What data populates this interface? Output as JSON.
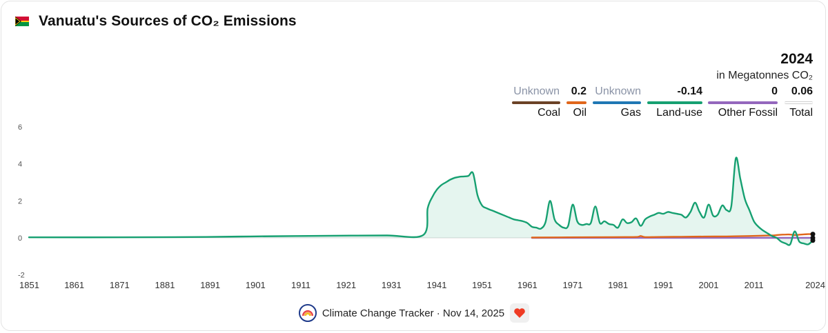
{
  "header": {
    "title": "Vanuatu's Sources of CO₂ Emissions"
  },
  "legend": {
    "year": "2024",
    "unit": "in Megatonnes CO₂",
    "items": [
      {
        "name": "Coal",
        "value": "Unknown",
        "color": "#6b4226"
      },
      {
        "name": "Oil",
        "value": "0.2",
        "color": "#e0661b"
      },
      {
        "name": "Gas",
        "value": "Unknown",
        "color": "#1f77b4"
      },
      {
        "name": "Land-use",
        "value": "-0.14",
        "color": "#16a071"
      },
      {
        "name": "Other Fossil",
        "value": "0",
        "color": "#9467bd"
      },
      {
        "name": "Total",
        "value": "0.06",
        "color": "#cccccc"
      }
    ]
  },
  "footer": {
    "text": "Climate Change Tracker · Nov 14, 2025",
    "logo_icon": "rainbow-logo-icon",
    "heart_icon": "heart-icon"
  },
  "chart_data": {
    "type": "line",
    "title": "Vanuatu's Sources of CO₂ Emissions",
    "xlabel": "",
    "ylabel": "",
    "xlim": [
      1851,
      2024
    ],
    "ylim": [
      -2,
      6
    ],
    "x_ticks": [
      "1851",
      "1861",
      "1871",
      "1881",
      "1891",
      "1901",
      "1911",
      "1921",
      "1931",
      "1941",
      "1951",
      "1961",
      "1971",
      "1981",
      "1991",
      "2001",
      "2011",
      "2024"
    ],
    "y_ticks": [
      "-2",
      "0",
      "2",
      "4",
      "6"
    ],
    "grid": false,
    "series": [
      {
        "name": "Land-use",
        "color": "#16a071",
        "fill": true,
        "points": [
          [
            1851,
            0.03
          ],
          [
            1870,
            0.03
          ],
          [
            1890,
            0.05
          ],
          [
            1900,
            0.08
          ],
          [
            1910,
            0.1
          ],
          [
            1920,
            0.12
          ],
          [
            1930,
            0.13
          ],
          [
            1938,
            0.15
          ],
          [
            1939,
            1.6
          ],
          [
            1940,
            2.2
          ],
          [
            1941,
            2.6
          ],
          [
            1942,
            2.85
          ],
          [
            1943,
            3.0
          ],
          [
            1944,
            3.15
          ],
          [
            1945,
            3.25
          ],
          [
            1946,
            3.3
          ],
          [
            1947,
            3.32
          ],
          [
            1948,
            3.35
          ],
          [
            1949,
            3.5
          ],
          [
            1950,
            2.3
          ],
          [
            1951,
            1.75
          ],
          [
            1952,
            1.6
          ],
          [
            1953,
            1.5
          ],
          [
            1954,
            1.4
          ],
          [
            1955,
            1.3
          ],
          [
            1956,
            1.2
          ],
          [
            1957,
            1.1
          ],
          [
            1958,
            1.0
          ],
          [
            1959,
            0.95
          ],
          [
            1960,
            0.9
          ],
          [
            1961,
            0.8
          ],
          [
            1962,
            0.6
          ],
          [
            1963,
            0.55
          ],
          [
            1964,
            0.5
          ],
          [
            1965,
            0.85
          ],
          [
            1966,
            2.0
          ],
          [
            1967,
            1.0
          ],
          [
            1968,
            0.7
          ],
          [
            1969,
            0.55
          ],
          [
            1970,
            0.65
          ],
          [
            1971,
            1.8
          ],
          [
            1972,
            0.9
          ],
          [
            1973,
            0.7
          ],
          [
            1974,
            0.75
          ],
          [
            1975,
            0.8
          ],
          [
            1976,
            1.7
          ],
          [
            1977,
            0.8
          ],
          [
            1978,
            0.9
          ],
          [
            1979,
            0.75
          ],
          [
            1980,
            0.7
          ],
          [
            1981,
            0.55
          ],
          [
            1982,
            1.0
          ],
          [
            1983,
            0.8
          ],
          [
            1984,
            0.85
          ],
          [
            1985,
            1.05
          ],
          [
            1986,
            0.65
          ],
          [
            1987,
            1.0
          ],
          [
            1988,
            1.15
          ],
          [
            1989,
            1.25
          ],
          [
            1990,
            1.35
          ],
          [
            1991,
            1.3
          ],
          [
            1992,
            1.4
          ],
          [
            1993,
            1.35
          ],
          [
            1994,
            1.3
          ],
          [
            1995,
            1.25
          ],
          [
            1996,
            1.1
          ],
          [
            1997,
            1.4
          ],
          [
            1998,
            1.9
          ],
          [
            1999,
            1.4
          ],
          [
            2000,
            1.1
          ],
          [
            2001,
            1.8
          ],
          [
            2002,
            1.2
          ],
          [
            2003,
            1.25
          ],
          [
            2004,
            1.75
          ],
          [
            2005,
            1.5
          ],
          [
            2006,
            1.7
          ],
          [
            2007,
            4.3
          ],
          [
            2008,
            3.2
          ],
          [
            2009,
            2.1
          ],
          [
            2010,
            1.5
          ],
          [
            2011,
            0.9
          ],
          [
            2012,
            0.6
          ],
          [
            2013,
            0.4
          ],
          [
            2014,
            0.25
          ],
          [
            2015,
            0.1
          ],
          [
            2016,
            0.0
          ],
          [
            2017,
            -0.2
          ],
          [
            2018,
            -0.3
          ],
          [
            2019,
            -0.35
          ],
          [
            2020,
            0.35
          ],
          [
            2021,
            -0.2
          ],
          [
            2022,
            -0.3
          ],
          [
            2023,
            -0.35
          ],
          [
            2024,
            -0.14
          ]
        ]
      },
      {
        "name": "Oil",
        "color": "#e0661b",
        "fill": false,
        "points": [
          [
            1962,
            0.02
          ],
          [
            1970,
            0.03
          ],
          [
            1980,
            0.04
          ],
          [
            1985,
            0.05
          ],
          [
            1986,
            0.1
          ],
          [
            1987,
            0.04
          ],
          [
            1990,
            0.05
          ],
          [
            1995,
            0.06
          ],
          [
            2000,
            0.07
          ],
          [
            2005,
            0.08
          ],
          [
            2010,
            0.1
          ],
          [
            2013,
            0.12
          ],
          [
            2015,
            0.13
          ],
          [
            2016,
            0.15
          ],
          [
            2017,
            0.17
          ],
          [
            2018,
            0.18
          ],
          [
            2019,
            0.18
          ],
          [
            2020,
            0.15
          ],
          [
            2021,
            0.17
          ],
          [
            2022,
            0.19
          ],
          [
            2023,
            0.2
          ],
          [
            2024,
            0.2
          ]
        ]
      },
      {
        "name": "Other Fossil",
        "color": "#9467bd",
        "fill": false,
        "points": [
          [
            1962,
            0
          ],
          [
            2024,
            0
          ]
        ]
      }
    ]
  }
}
